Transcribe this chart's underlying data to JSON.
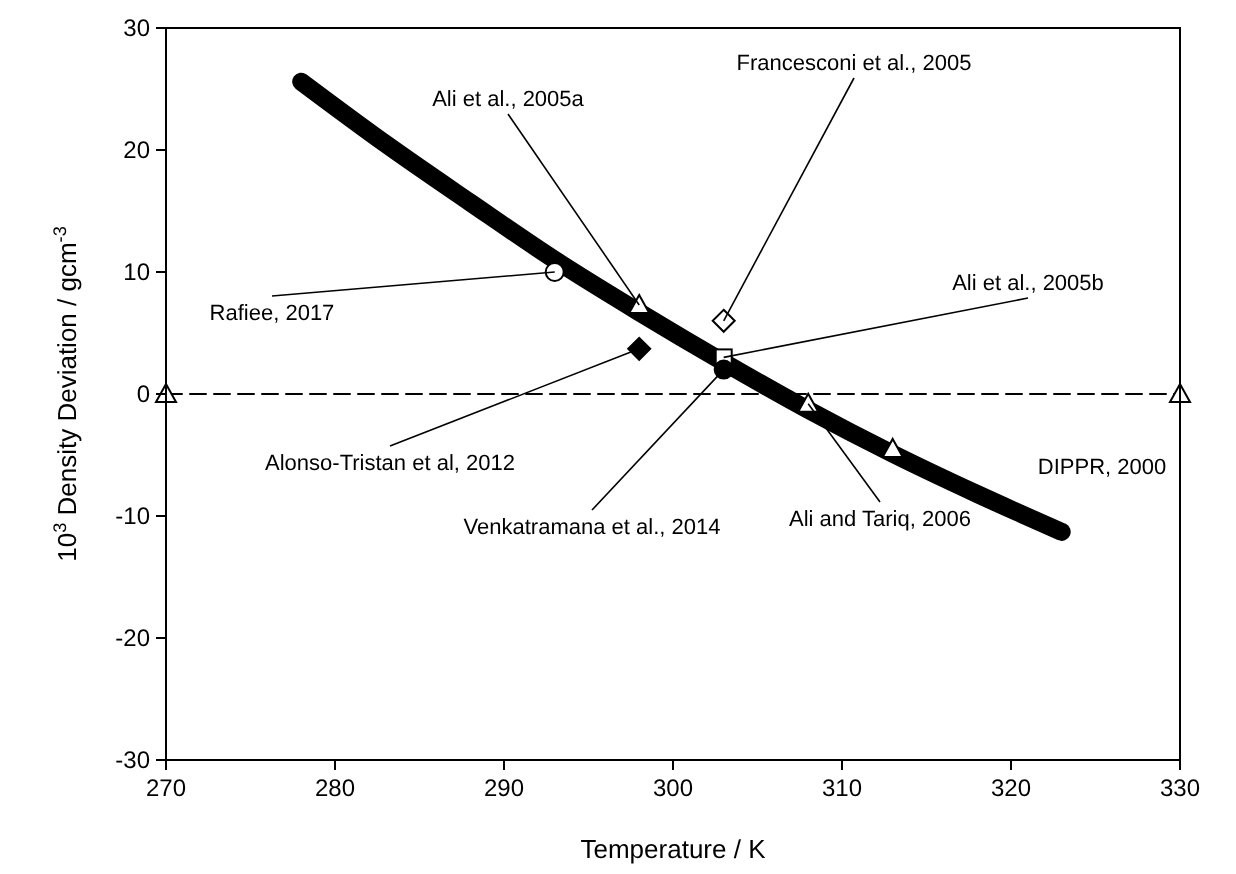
{
  "chart_data": {
    "type": "scatter",
    "xlabel": "Temperature / K",
    "ylabel": "10$^{3}$ Density Deviation / gcm$^{-3}$",
    "xlim": [
      270,
      330
    ],
    "ylim": [
      -30,
      30
    ],
    "xticks": [
      270,
      280,
      290,
      300,
      310,
      320,
      330
    ],
    "yticks": [
      -30,
      -20,
      -10,
      0,
      10,
      20,
      30
    ],
    "grid": false,
    "series": [
      {
        "type": "line",
        "name": "DIPPR, 2000",
        "color": "#000000",
        "marker": "none",
        "x": [
          278,
          283,
          288,
          293,
          298,
          303,
          308,
          313,
          318,
          323
        ],
        "values": [
          25.6,
          20.5,
          15.7,
          11,
          6.7,
          2.6,
          -1.3,
          -4.9,
          -8.2,
          -11.3
        ]
      },
      {
        "type": "line",
        "color": "#000000",
        "line_style": "dashed",
        "marker": "triangle",
        "x": [
          270,
          330
        ],
        "values": [
          0,
          0
        ]
      },
      {
        "name": "Rafiee, 2017",
        "color": "#ffffff",
        "marker": "circle",
        "x": [
          293
        ],
        "values": [
          10
        ]
      },
      {
        "name": "Ali et al., 2005a",
        "color": "#ffffff",
        "marker": "triangle",
        "x": [
          298
        ],
        "values": [
          7.3
        ]
      },
      {
        "name": "Francesconi et al., 2005",
        "color": "#ffffff",
        "marker": "diamond",
        "x": [
          303
        ],
        "values": [
          6
        ]
      },
      {
        "name": "Ali et al., 2005b",
        "color": "#ffffff",
        "marker": "square",
        "x": [
          303
        ],
        "values": [
          3
        ]
      },
      {
        "name": "Alonso-Tristan et al, 2012",
        "color": "#000000",
        "marker": "diamond",
        "x": [
          298
        ],
        "values": [
          3.7
        ]
      },
      {
        "name": "Venkatramana et al., 2014",
        "color": "#000000",
        "marker": "circle",
        "x": [
          303
        ],
        "values": [
          2
        ]
      },
      {
        "name": "Ali and Tariq, 2006",
        "color": "#ffffff",
        "marker": "triangle",
        "x": [
          308,
          313
        ],
        "values": [
          -0.8,
          -4.5
        ]
      }
    ]
  }
}
